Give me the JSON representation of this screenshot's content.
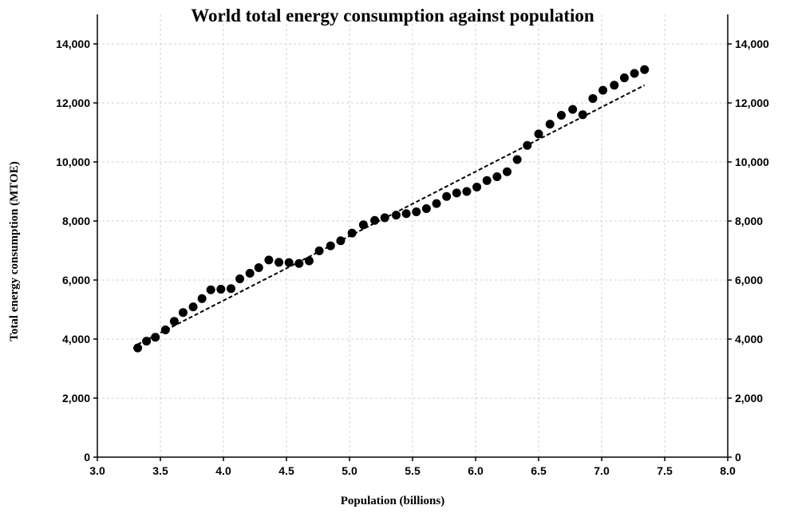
{
  "chart_data": {
    "type": "scatter",
    "title": "World total energy consumption against population",
    "xlabel": "Population (billions)",
    "ylabel": "Total energy consumption (MTOE)",
    "xlim": [
      3.0,
      8.0
    ],
    "ylim": [
      0,
      15000
    ],
    "x_ticks": [
      3.0,
      3.5,
      4.0,
      4.5,
      5.0,
      5.5,
      6.0,
      6.5,
      7.0,
      7.5,
      8.0
    ],
    "x_tick_labels": [
      "3.0",
      "3.5",
      "4.0",
      "4.5",
      "5.0",
      "5.5",
      "6.0",
      "6.5",
      "7.0",
      "7.5",
      "8.0"
    ],
    "y_ticks": [
      0,
      2000,
      4000,
      6000,
      8000,
      10000,
      12000,
      14000
    ],
    "y_tick_labels": [
      "0",
      "2,000",
      "4,000",
      "6,000",
      "8,000",
      "10,000",
      "12,000",
      "14,000"
    ],
    "y_axis_right_mirror": true,
    "grid": true,
    "marker_color": "#000000",
    "series": [
      {
        "type": "scatter",
        "points": [
          [
            3.32,
            3700
          ],
          [
            3.39,
            3930
          ],
          [
            3.46,
            4060
          ],
          [
            3.54,
            4310
          ],
          [
            3.61,
            4600
          ],
          [
            3.68,
            4900
          ],
          [
            3.76,
            5090
          ],
          [
            3.83,
            5370
          ],
          [
            3.9,
            5670
          ],
          [
            3.98,
            5690
          ],
          [
            4.06,
            5710
          ],
          [
            4.13,
            6040
          ],
          [
            4.21,
            6230
          ],
          [
            4.28,
            6420
          ],
          [
            4.36,
            6680
          ],
          [
            4.44,
            6600
          ],
          [
            4.52,
            6590
          ],
          [
            4.6,
            6560
          ],
          [
            4.68,
            6650
          ],
          [
            4.76,
            6990
          ],
          [
            4.85,
            7160
          ],
          [
            4.93,
            7330
          ],
          [
            5.02,
            7590
          ],
          [
            5.11,
            7870
          ],
          [
            5.2,
            8020
          ],
          [
            5.28,
            8110
          ],
          [
            5.37,
            8200
          ],
          [
            5.45,
            8250
          ],
          [
            5.53,
            8310
          ],
          [
            5.61,
            8420
          ],
          [
            5.69,
            8590
          ],
          [
            5.77,
            8830
          ],
          [
            5.85,
            8950
          ],
          [
            5.93,
            9000
          ],
          [
            6.01,
            9150
          ],
          [
            6.09,
            9370
          ],
          [
            6.17,
            9500
          ],
          [
            6.25,
            9670
          ],
          [
            6.33,
            10080
          ],
          [
            6.41,
            10560
          ],
          [
            6.5,
            10950
          ],
          [
            6.59,
            11280
          ],
          [
            6.68,
            11580
          ],
          [
            6.77,
            11780
          ],
          [
            6.85,
            11600
          ],
          [
            6.93,
            12150
          ],
          [
            7.01,
            12430
          ],
          [
            7.1,
            12600
          ],
          [
            7.18,
            12850
          ],
          [
            7.26,
            13000
          ],
          [
            7.34,
            13130
          ]
        ]
      },
      {
        "type": "line",
        "style": "dashed",
        "points": [
          [
            3.32,
            3820
          ],
          [
            7.34,
            12600
          ]
        ]
      }
    ]
  }
}
